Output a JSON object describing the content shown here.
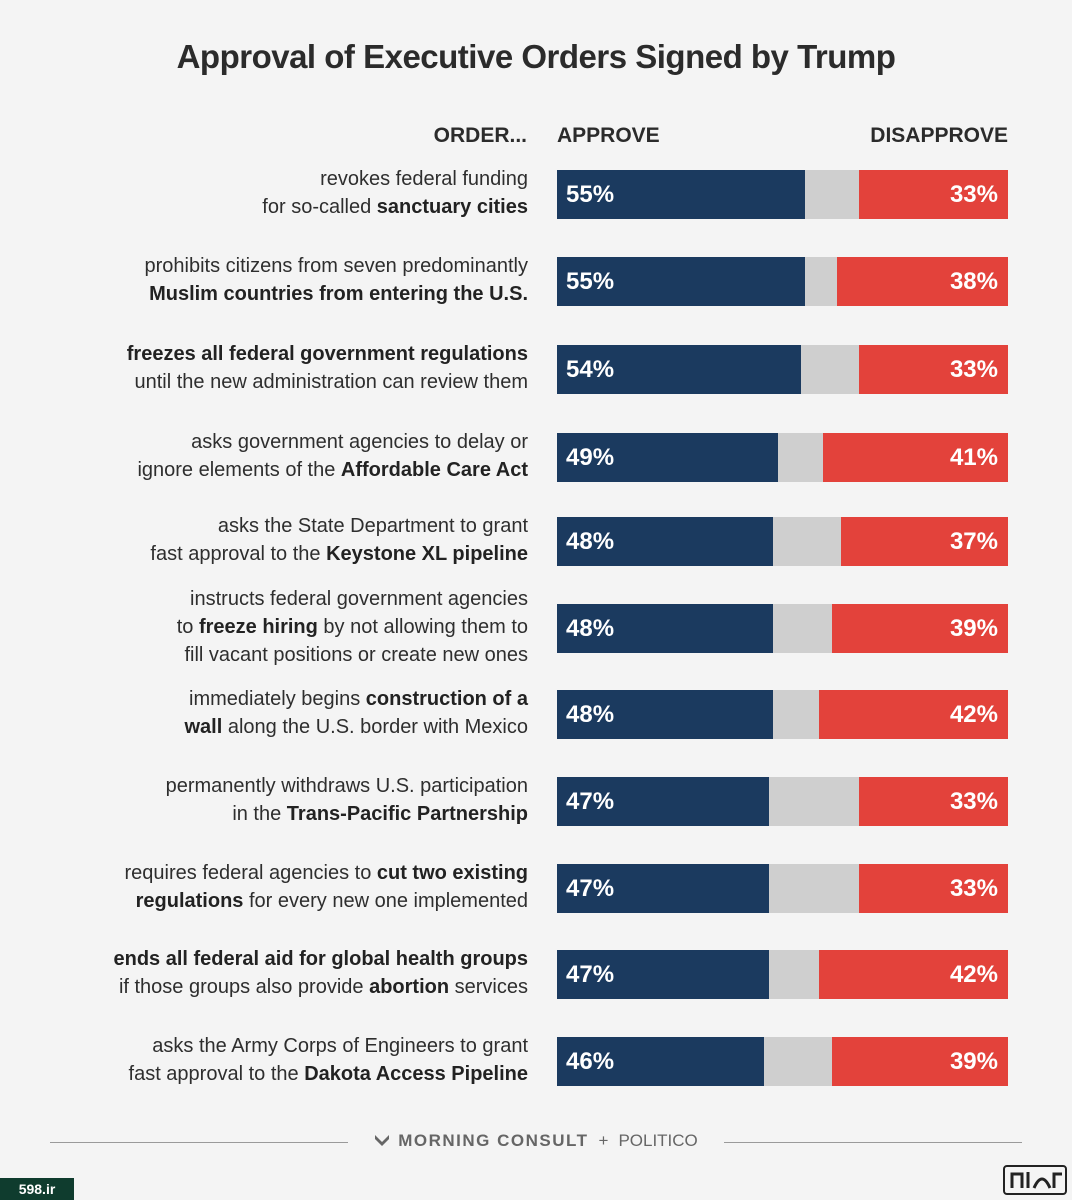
{
  "title": "Approval of Executive Orders Signed by Trump",
  "headers": {
    "order": "ORDER...",
    "approve": "APPROVE",
    "disapprove": "DISAPPROVE"
  },
  "footer": {
    "brand1": "MORNING CONSULT",
    "plus": "+",
    "brand2": "POLITICO"
  },
  "watermark": {
    "left": "598.ir"
  },
  "colors": {
    "approve": "#1b3a5f",
    "disapprove": "#e3423b",
    "neutral": "#cfcfcf"
  },
  "chart_data": {
    "type": "bar",
    "orientation": "horizontal-stacked",
    "title": "Approval of Executive Orders Signed by Trump",
    "series_labels": [
      "APPROVE",
      "DISAPPROVE"
    ],
    "rows": [
      {
        "lines": [
          [
            [
              "revokes federal funding",
              false
            ]
          ],
          [
            [
              "for so-called ",
              false
            ],
            [
              "sanctuary cities",
              true
            ]
          ]
        ],
        "approve": 55,
        "disapprove": 33
      },
      {
        "lines": [
          [
            [
              "prohibits citizens from seven predominantly",
              false
            ]
          ],
          [
            [
              "Muslim countries from entering the U.S.",
              true
            ]
          ]
        ],
        "approve": 55,
        "disapprove": 38
      },
      {
        "lines": [
          [
            [
              "freezes all federal government regulations",
              true
            ]
          ],
          [
            [
              "until the new administration can review them",
              false
            ]
          ]
        ],
        "approve": 54,
        "disapprove": 33
      },
      {
        "lines": [
          [
            [
              "asks government agencies to delay or",
              false
            ]
          ],
          [
            [
              "ignore elements of the ",
              false
            ],
            [
              "Affordable Care Act",
              true
            ]
          ]
        ],
        "approve": 49,
        "disapprove": 41
      },
      {
        "lines": [
          [
            [
              "asks the State Department to grant",
              false
            ]
          ],
          [
            [
              "fast approval to the ",
              false
            ],
            [
              "Keystone XL pipeline",
              true
            ]
          ]
        ],
        "approve": 48,
        "disapprove": 37
      },
      {
        "lines": [
          [
            [
              "instructs federal government agencies",
              false
            ]
          ],
          [
            [
              "to ",
              false
            ],
            [
              "freeze hiring",
              true
            ],
            [
              " by not allowing them to",
              false
            ]
          ],
          [
            [
              "fill vacant positions or create new ones",
              false
            ]
          ]
        ],
        "approve": 48,
        "disapprove": 39
      },
      {
        "lines": [
          [
            [
              "immediately begins ",
              false
            ],
            [
              "construction of a",
              true
            ]
          ],
          [
            [
              "wall",
              true
            ],
            [
              " along the U.S. border with Mexico",
              false
            ]
          ]
        ],
        "approve": 48,
        "disapprove": 42
      },
      {
        "lines": [
          [
            [
              "permanently withdraws U.S. participation",
              false
            ]
          ],
          [
            [
              "in the ",
              false
            ],
            [
              "Trans-Pacific Partnership",
              true
            ]
          ]
        ],
        "approve": 47,
        "disapprove": 33
      },
      {
        "lines": [
          [
            [
              "requires federal agencies to ",
              false
            ],
            [
              "cut two existing",
              true
            ]
          ],
          [
            [
              "regulations",
              true
            ],
            [
              " for every new one implemented",
              false
            ]
          ]
        ],
        "approve": 47,
        "disapprove": 33
      },
      {
        "lines": [
          [
            [
              "ends all federal aid for global health groups",
              true
            ]
          ],
          [
            [
              "if those groups also provide ",
              false
            ],
            [
              "abortion",
              true
            ],
            [
              " services",
              false
            ]
          ]
        ],
        "approve": 47,
        "disapprove": 42
      },
      {
        "lines": [
          [
            [
              "asks the Army Corps of Engineers to grant",
              false
            ]
          ],
          [
            [
              "fast approval to the ",
              false
            ],
            [
              "Dakota Access Pipeline",
              true
            ]
          ]
        ],
        "approve": 46,
        "disapprove": 39
      }
    ],
    "value_suffix": "%",
    "xlim": [
      0,
      100
    ]
  }
}
